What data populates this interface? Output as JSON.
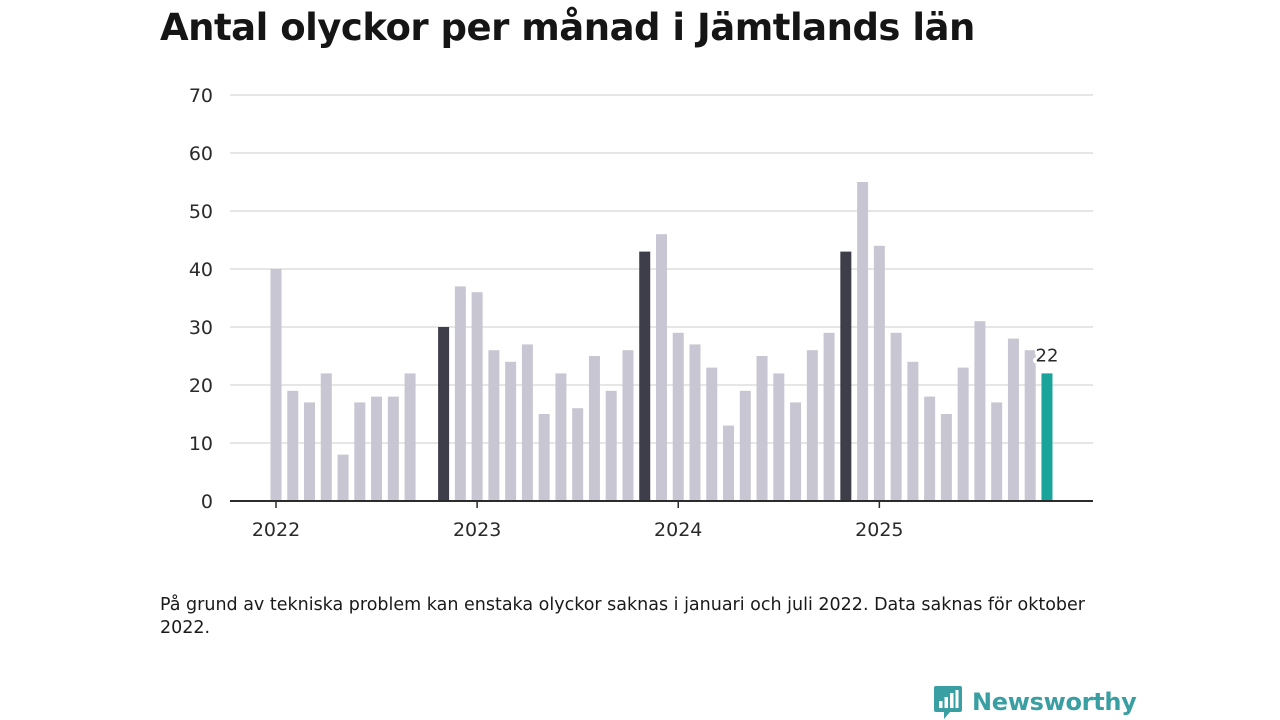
{
  "title": "Antal olyckor per månad i Jämtlands län",
  "note": "På grund av tekniska problem kan enstaka olyckor saknas i januari och juli 2022. Data saknas för oktober 2022.",
  "brand": {
    "name": "Newsworthy",
    "logo_icon": "newsworthy-logo-icon"
  },
  "colors": {
    "bar": "#c8c6d3",
    "highlight": "#3e3d4a",
    "current": "#19a39a",
    "grid": "#dddddd",
    "axis": "#2b2b2b"
  },
  "chart_data": {
    "type": "bar",
    "title": "Antal olyckor per månad i Jämtlands län",
    "xlabel": "",
    "ylabel": "",
    "ylim": [
      0,
      70
    ],
    "y_ticks": [
      "0",
      "10",
      "20",
      "30",
      "40",
      "50",
      "60",
      "70"
    ],
    "x_ticks": [
      {
        "label": "2022",
        "at": "2022-01"
      },
      {
        "label": "2023",
        "at": "2023-01"
      },
      {
        "label": "2024",
        "at": "2024-01"
      },
      {
        "label": "2025",
        "at": "2025-01"
      }
    ],
    "grid": true,
    "categories": [
      "2022-01",
      "2022-02",
      "2022-03",
      "2022-04",
      "2022-05",
      "2022-06",
      "2022-07",
      "2022-08",
      "2022-09",
      "2022-10",
      "2022-11",
      "2022-12",
      "2023-01",
      "2023-02",
      "2023-03",
      "2023-04",
      "2023-05",
      "2023-06",
      "2023-07",
      "2023-08",
      "2023-09",
      "2023-10",
      "2023-11",
      "2023-12",
      "2024-01",
      "2024-02",
      "2024-03",
      "2024-04",
      "2024-05",
      "2024-06",
      "2024-07",
      "2024-08",
      "2024-09",
      "2024-10",
      "2024-11",
      "2024-12",
      "2025-01",
      "2025-02",
      "2025-03",
      "2025-04",
      "2025-05",
      "2025-06",
      "2025-07",
      "2025-08",
      "2025-09",
      "2025-10",
      "2025-11"
    ],
    "values": [
      40,
      19,
      17,
      22,
      8,
      17,
      18,
      18,
      22,
      null,
      30,
      37,
      36,
      26,
      24,
      27,
      15,
      22,
      16,
      25,
      19,
      26,
      43,
      46,
      29,
      27,
      23,
      13,
      19,
      25,
      22,
      17,
      26,
      29,
      43,
      55,
      44,
      29,
      24,
      18,
      15,
      23,
      31,
      17,
      28,
      26,
      22
    ],
    "highlighted": [
      "2022-11",
      "2023-11",
      "2024-11"
    ],
    "current": "2025-11",
    "annotations": [
      {
        "at": "2025-11",
        "text": "22"
      }
    ]
  }
}
